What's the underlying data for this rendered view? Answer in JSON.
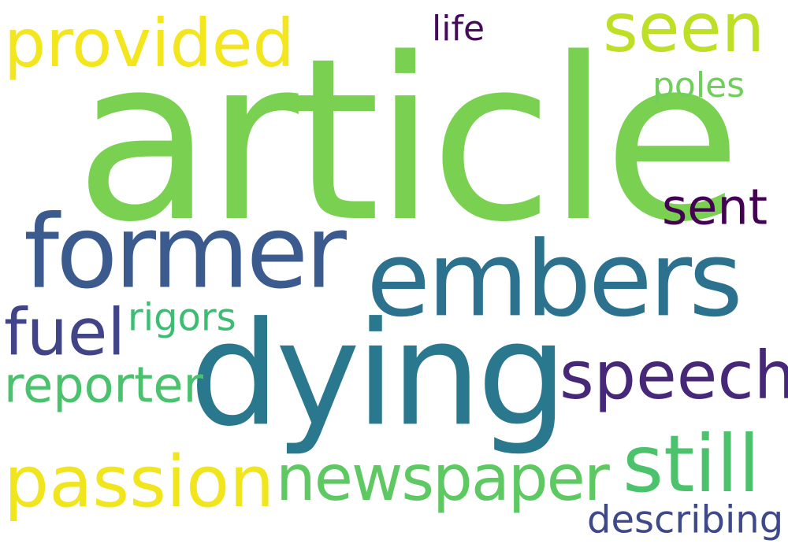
{
  "words": [
    {
      "text": "article",
      "color": "#7ad151"
    },
    {
      "text": "provided",
      "color": "#f4e61e"
    },
    {
      "text": "life",
      "color": "#450b5a"
    },
    {
      "text": "seen",
      "color": "#bddf26"
    },
    {
      "text": "poles",
      "color": "#6fcf5a"
    },
    {
      "text": "former",
      "color": "#3b5b8f"
    },
    {
      "text": "sent",
      "color": "#440154"
    },
    {
      "text": "embers",
      "color": "#2c728e"
    },
    {
      "text": "fuel",
      "color": "#414487"
    },
    {
      "text": "rigors",
      "color": "#3dbc74"
    },
    {
      "text": "dying",
      "color": "#2a788e"
    },
    {
      "text": "speech",
      "color": "#472878"
    },
    {
      "text": "reporter",
      "color": "#4ac16d"
    },
    {
      "text": "passion",
      "color": "#f1e51d"
    },
    {
      "text": "newspaper",
      "color": "#5ec962"
    },
    {
      "text": "still",
      "color": "#4cc26c"
    },
    {
      "text": "describing",
      "color": "#3e4989"
    }
  ]
}
